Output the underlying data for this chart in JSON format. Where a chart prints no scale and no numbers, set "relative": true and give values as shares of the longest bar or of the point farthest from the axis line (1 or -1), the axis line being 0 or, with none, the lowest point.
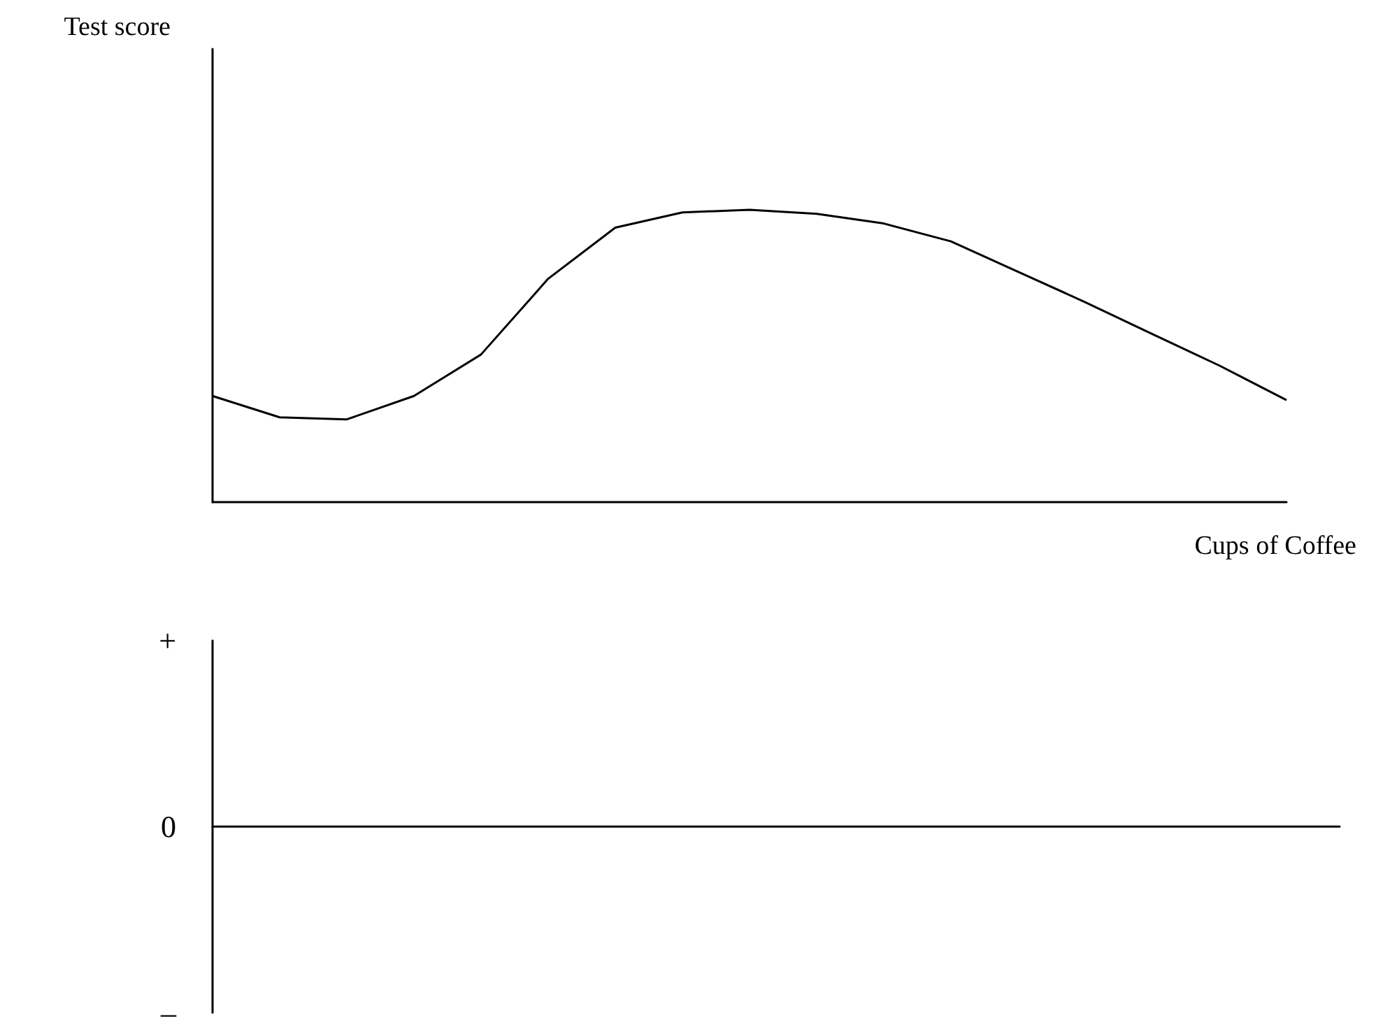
{
  "chart_data": [
    {
      "type": "line",
      "relative": true,
      "ylabel": "Test score",
      "xlabel": "Cups of Coffee",
      "marker": "none",
      "color": "#000000",
      "categories": [
        null,
        null,
        null,
        null,
        null,
        null,
        null,
        null,
        null,
        null,
        null,
        null,
        null,
        null,
        null,
        null,
        null
      ],
      "values": [
        0.363,
        0.29,
        0.283,
        0.363,
        0.505,
        0.764,
        0.939,
        0.991,
        1.0,
        0.986,
        0.953,
        0.892,
        0.788,
        0.684,
        0.575,
        0.467,
        0.349
      ]
    },
    {
      "type": "other",
      "annotations": [
        "+",
        "0",
        "–"
      ]
    }
  ]
}
